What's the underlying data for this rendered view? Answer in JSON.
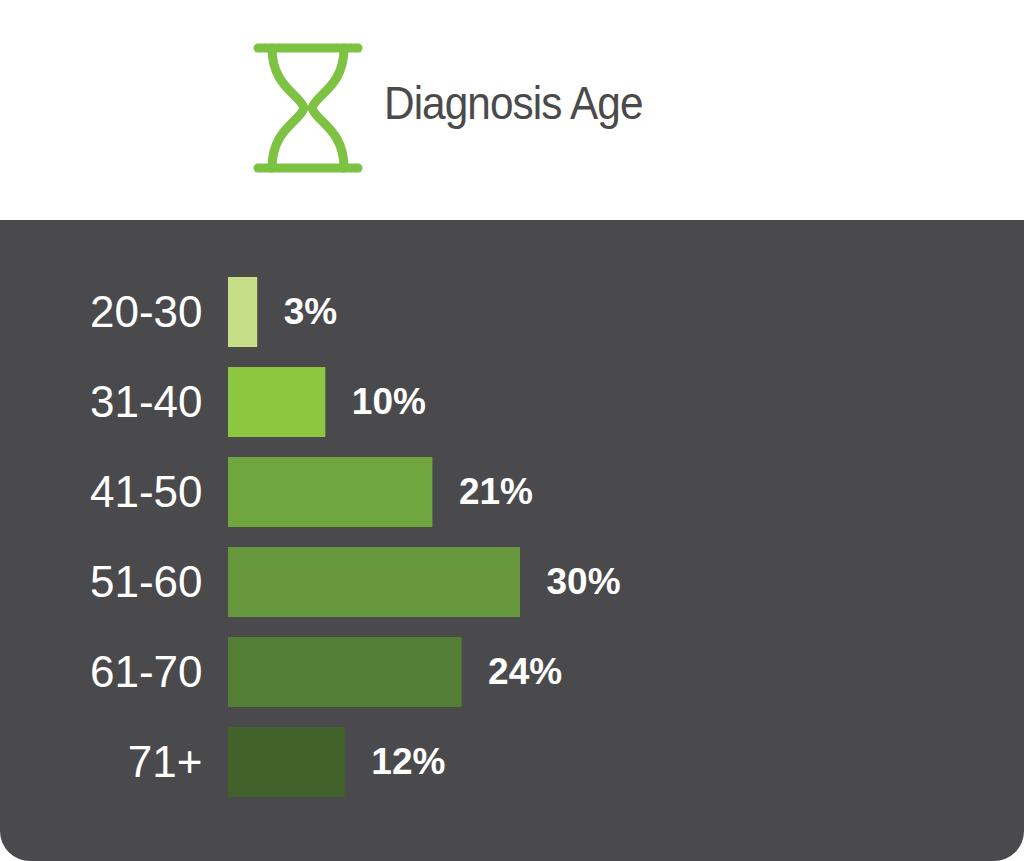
{
  "chart_data": {
    "type": "bar",
    "title": "Diagnosis Age",
    "categories": [
      "20-30",
      "31-40",
      "41-50",
      "51-60",
      "61-70",
      "71+"
    ],
    "values": [
      3,
      10,
      21,
      30,
      24,
      12
    ],
    "value_labels": [
      "3%",
      "10%",
      "21%",
      "30%",
      "24%",
      "12%"
    ],
    "colors": [
      "#c6df86",
      "#8dc63f",
      "#70a63e",
      "#67983d",
      "#537e35",
      "#41622b"
    ],
    "orientation": "horizontal",
    "data_labels": true,
    "tick_labels": "y"
  }
}
